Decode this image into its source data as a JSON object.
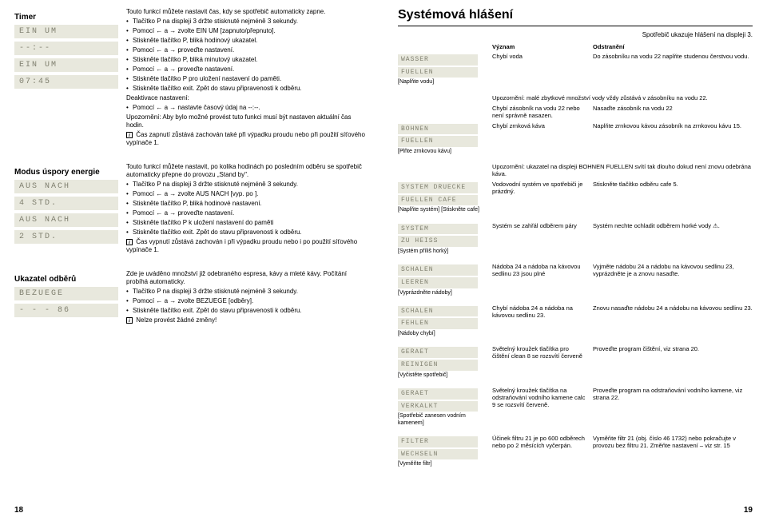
{
  "left_page": {
    "pagenum": "18",
    "sections": [
      {
        "heading": "Timer",
        "lcd": [
          "EIN  UM",
          "--:--",
          "EIN  UM",
          "07:45"
        ],
        "body_html": "Touto funkcí můžete nastavit čas, kdy se spotřebič automaticky zapne.|BULLET Tlačítko P na displeji 3 držte stisknuté nejméně 3 sekundy.|BULLET Pomocí ← a → zvolte EIN UM [zapnuto/přepnuto].|BULLET Stiskněte tlačítko P, bliká hodinový ukazatel.|BULLET Pomocí ← a → proveďte nastavení.|BULLET Stiskněte tlačítko P, bliká minutový ukazatel.|BULLET Pomocí ← a → proveďte nastavení.|BULLET Stiskněte tlačítko P pro uložení nastavení do paměti.|BULLET Stiskněte tlačítko exit. Zpět do stavu připravenosti k odběru.|Deaktivace nastavení:|BULLET Pomocí ← a → nastavte časový údaj na --:--.|Upozornění: Aby bylo možné provést tuto funkci musí být nastaven aktuální čas hodin.|INFO Čas zapnutí zůstává zachován také při výpadku proudu nebo při použití síťového vypínače 1."
      },
      {
        "heading": "Modus úspory energie",
        "lcd": [
          "AUS NACH",
          "4 STD.",
          "AUS NACH",
          "2 STD."
        ],
        "body_html": "Touto funkcí můžete nastavit, po kolika hodinách po posledním odběru se spotřebič automaticky přepne do provozu „Stand by\".|BULLET Tlačítko P na displeji 3 držte stisknuté nejméně 3 sekundy.|BULLET Pomocí ← a → zvolte AUS NACH [vyp. po ].|BULLET Stiskněte tlačítko P, bliká hodinové nastavení.|BULLET Pomocí ← a → proveďte nastavení.|BULLET Stiskněte tlačítko P k uložení nastavení do paměti|BULLET Stiskněte tlačítko exit. Zpět do stavu připravenosti k odběru.|INFO Čas vypnutí zůstává zachován i při výpadku proudu nebo i po použití síťového vypínače 1."
      },
      {
        "heading": "Ukazatel odběrů",
        "lcd": [
          "BEZUEGE",
          "- - - 86"
        ],
        "body_html": "Zde je uváděno množství již odebraného espresa, kávy a mleté kávy. Počítání probíhá automaticky.|BULLET Tlačítko P na displeji 3 držte stisknuté nejméně 3 sekundy.|BULLET Pomocí ← a → zvolte BEZUEGE [odběry].|BULLET Stiskněte tlačítko exit. Zpět do stavu připravenosti k odběru.|INFO Nelze provést žádné změny!"
      }
    ]
  },
  "right_page": {
    "pagenum": "19",
    "title": "Systémová hlášení",
    "subtitle": "Spotřebič ukazuje hlášení na displeji 3.",
    "col_headers": [
      "",
      "Význam",
      "Odstranění"
    ],
    "rows": [
      {
        "lcd": [
          "WASSER",
          "FUELLEN"
        ],
        "caption": "[Naplňte vodu]",
        "meaning": "Chybí voda",
        "fix": "Do zásobníku na vodu 22 naplňte studenou čerstvou vodu.",
        "note": "Upozornění: malé zbytkové množství vody vždy zůstává v zásobníku na vodu 22."
      },
      {
        "lcd": [],
        "caption": "",
        "meaning": "Chybí zásobník na vodu 22 nebo není správně nasazen.",
        "fix": "Nasaďte zásobník na vodu 22"
      },
      {
        "lcd": [
          "BOHNEN",
          "FUELLEN"
        ],
        "caption": "[Plňte zrnkovou kávu]",
        "meaning": "Chybí zrnková káva",
        "fix": "Naplňte zrnkovou kávou zásobník na zrnkovou kávu 15.",
        "note": "Upozornění: ukazatel na displeji BOHNEN FUELLEN svítí tak dlouho dokud není znovu odebrána káva."
      },
      {
        "lcd": [
          "SYSTEM  DRUECKE",
          "FUELLEN  CAFE"
        ],
        "caption": "[Naplňte systém]\n[Stiskněte cafe]",
        "meaning": "Vodovodní systém ve spotřebiči je prázdný.",
        "fix": "Stiskněte tlačítko odběru cafe 5."
      },
      {
        "lcd": [
          "SYSTEM",
          "ZU HEISS"
        ],
        "caption": "[Systém příliš horký]",
        "meaning": "Systém se zahřál odběrem páry",
        "fix": "Systém nechte ochladit odběrem horké vody ⚠."
      },
      {
        "lcd": [
          "SCHALEN",
          "LEEREN"
        ],
        "caption": "[Vyprázdněte nádoby]",
        "meaning": "Nádoba 24 a nádoba na kávovou sedlinu 23 jsou plné",
        "fix": "Vyjměte nádobu 24 a nádobu na kávovou sedlinu 23, vyprázdněte je a znovu nasaďte."
      },
      {
        "lcd": [
          "SCHALEN",
          "FEHLEN"
        ],
        "caption": "[Nádoby chybí]",
        "meaning": "Chybí nádoba 24 a nádoba na kávovou sedlinu 23.",
        "fix": "Znovu nasaďte nádobu 24 a nádobu na kávovou sedlinu 23."
      },
      {
        "lcd": [
          "GERAET",
          "REINIGEN"
        ],
        "caption": "[Vyčistěte spotřebič]",
        "meaning": "Světelný kroužek tlačítka pro čištění clean 8 se rozsvítí červeně",
        "fix": "Proveďte program čištění, viz strana 20."
      },
      {
        "lcd": [
          "GERAET",
          "VERKALKT"
        ],
        "caption": "[Spotřebič zanesen vodním kamenem]",
        "meaning": "Světelný kroužek tlačítka na odstraňování vodního kamene calc 9 se rozsvítí červeně.",
        "fix": "Proveďte program na odstraňování vodního kamene, viz strana 22."
      },
      {
        "lcd": [
          "FILTER",
          "WECHSELN"
        ],
        "caption": "[Vyměňte filtr]",
        "meaning": "Účinek filtru 21 je po 600 odběrech nebo po 2 měsících vyčerpán.",
        "fix": "Vyměňte filtr 21 (obj. číslo 46 1732) nebo pokračujte v provozu bez filtru 21. Změňte nastavení – viz str. 15"
      }
    ]
  }
}
